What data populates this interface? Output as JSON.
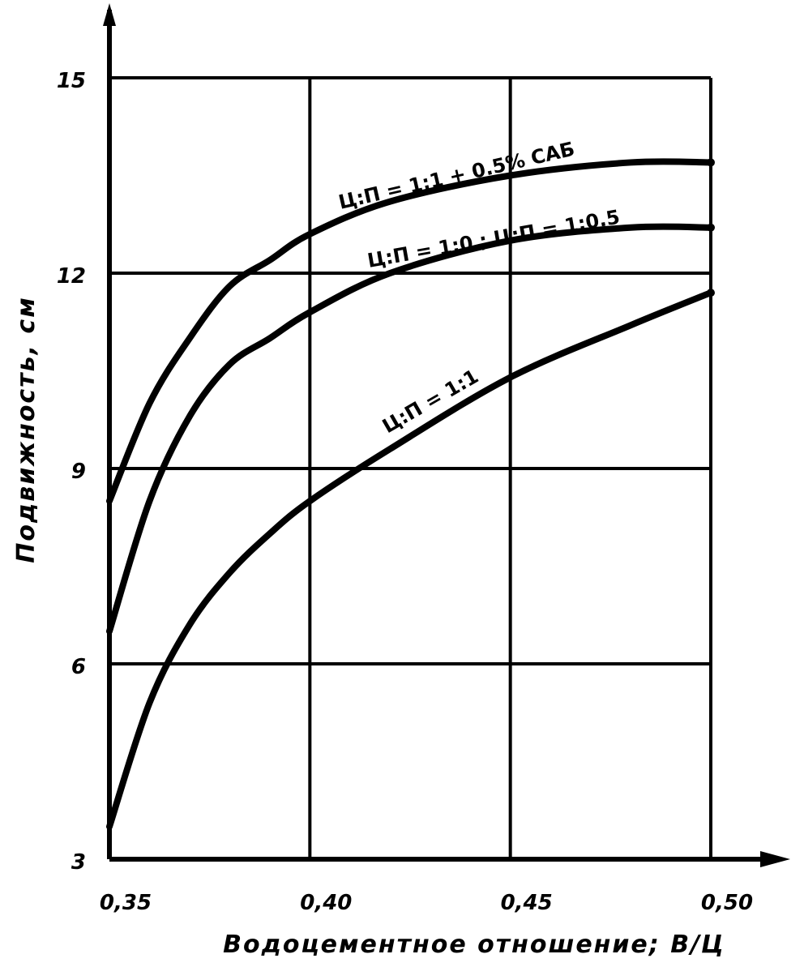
{
  "chart_data": {
    "type": "line",
    "xlabel": "Водоцементное отношение; В/Ц",
    "ylabel": "Подвижность, см",
    "x_ticks": [
      "0,35",
      "0,40",
      "0,45",
      "0,50"
    ],
    "y_ticks": [
      "3",
      "6",
      "9",
      "12",
      "15"
    ],
    "xlim": [
      0.35,
      0.5
    ],
    "ylim": [
      3,
      15
    ],
    "grid": true,
    "series": [
      {
        "name": "Ц:П = 1:1 + 0.5% САБ",
        "x": [
          0.35,
          0.36,
          0.37,
          0.38,
          0.39,
          0.4,
          0.42,
          0.45,
          0.48,
          0.5
        ],
        "y": [
          8.5,
          10.0,
          11.0,
          11.8,
          12.2,
          12.6,
          13.1,
          13.5,
          13.7,
          13.7
        ]
      },
      {
        "name": "Ц:П = 1:0 ; Ц:П = 1:0.5",
        "x": [
          0.35,
          0.36,
          0.37,
          0.38,
          0.39,
          0.4,
          0.42,
          0.45,
          0.48,
          0.5
        ],
        "y": [
          6.5,
          8.5,
          9.8,
          10.6,
          11.0,
          11.4,
          12.0,
          12.5,
          12.7,
          12.7
        ]
      },
      {
        "name": "Ц:П = 1:1",
        "x": [
          0.35,
          0.36,
          0.37,
          0.38,
          0.39,
          0.4,
          0.42,
          0.45,
          0.48,
          0.5
        ],
        "y": [
          3.5,
          5.4,
          6.6,
          7.4,
          8.0,
          8.5,
          9.3,
          10.4,
          11.2,
          11.7
        ]
      }
    ]
  }
}
